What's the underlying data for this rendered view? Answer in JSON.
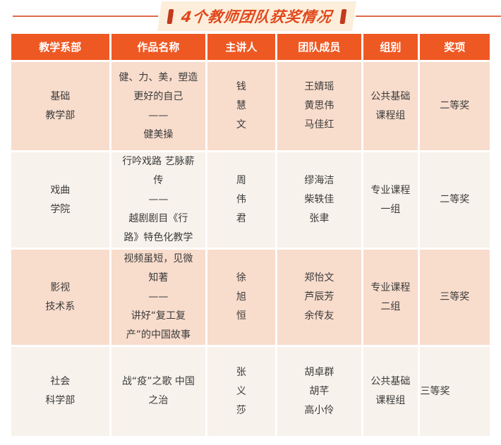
{
  "title": {
    "text": "4个教师团队获奖情况"
  },
  "table": {
    "headers": [
      "教学系部",
      "作品名称",
      "主讲人",
      "团队成员",
      "组别",
      "奖项"
    ],
    "rows": [
      {
        "dept": [
          "基础",
          "教学部"
        ],
        "work": [
          "健、力、美，塑造",
          "更好的自己",
          "——",
          "健美操"
        ],
        "speaker": [
          "钱",
          "慧",
          "文"
        ],
        "members": [
          "王婧瑶",
          "黄思伟",
          "马佳红"
        ],
        "group": [
          "公共基础",
          "课程组"
        ],
        "award": "二等奖",
        "award_align": "center"
      },
      {
        "dept": [
          "戏曲",
          "学院"
        ],
        "work": [
          "行吟戏路 艺脉薪",
          "传",
          "——",
          "越剧剧目《行",
          "路》特色化教学"
        ],
        "speaker": [
          "周",
          "伟",
          "君"
        ],
        "members": [
          "缪海洁",
          "柴轶佳",
          "张聿"
        ],
        "group": [
          "专业课程",
          "一组"
        ],
        "award": "二等奖",
        "award_align": "center"
      },
      {
        "dept": [
          "影视",
          "技术系"
        ],
        "work": [
          "视频虽短，见微",
          "知著",
          "——",
          "讲好“复工复",
          "产”的中国故事"
        ],
        "speaker": [
          "徐",
          "旭",
          "恒"
        ],
        "members": [
          "郑怡文",
          "芦辰芳",
          "余传友"
        ],
        "group": [
          "专业课程",
          "二组"
        ],
        "award": "三等奖",
        "award_align": "center"
      },
      {
        "dept": [
          "社会",
          "科学部"
        ],
        "work": [
          "战“疫”之歌 中国",
          "之治"
        ],
        "speaker": [
          "张",
          "义",
          "莎"
        ],
        "members": [
          "胡卓群",
          "胡芊",
          "高小伶"
        ],
        "group": [
          "公共基础",
          "课程组"
        ],
        "award": "三等奖",
        "award_align": "left"
      }
    ]
  },
  "colors": {
    "header_bg": "#ee5823",
    "row_peach": "#f8dccc",
    "row_cream": "#f7f2eb",
    "title_text": "#e1481d",
    "title_badge_bg": "#fceeda",
    "title_bar": "#c33a1e",
    "flank_line": "#e06a49",
    "cell_text": "#3b3b3b"
  }
}
